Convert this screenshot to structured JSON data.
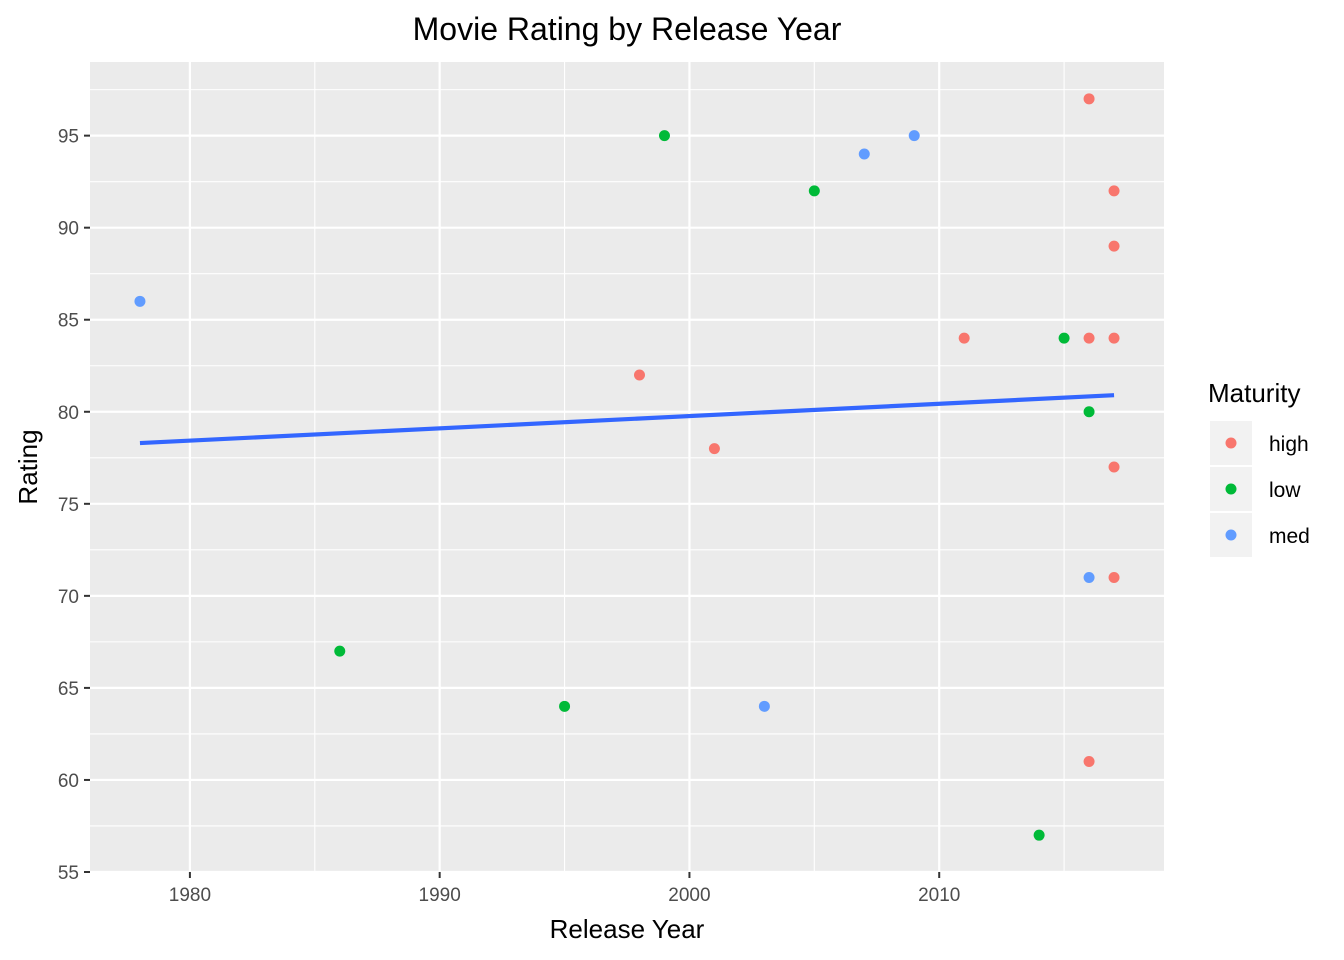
{
  "chart_data": {
    "type": "scatter",
    "title": "Movie Rating by Release Year",
    "xlabel": "Release Year",
    "ylabel": "Rating",
    "xlim": [
      1976,
      2019
    ],
    "ylim": [
      55,
      99
    ],
    "x_ticks": [
      1980,
      1990,
      2000,
      2010
    ],
    "y_ticks": [
      55,
      60,
      65,
      70,
      75,
      80,
      85,
      90,
      95
    ],
    "grid": true,
    "legend": {
      "title": "Maturity",
      "position": "right",
      "entries": [
        {
          "label": "high",
          "color": "#F8766D"
        },
        {
          "label": "low",
          "color": "#00BA38"
        },
        {
          "label": "med",
          "color": "#619CFF"
        }
      ]
    },
    "series": [
      {
        "name": "high",
        "color": "#F8766D",
        "points": [
          {
            "x": 1998,
            "y": 82
          },
          {
            "x": 2001,
            "y": 78
          },
          {
            "x": 2011,
            "y": 84
          },
          {
            "x": 2016,
            "y": 97
          },
          {
            "x": 2016,
            "y": 84
          },
          {
            "x": 2016,
            "y": 61
          },
          {
            "x": 2017,
            "y": 92
          },
          {
            "x": 2017,
            "y": 89
          },
          {
            "x": 2017,
            "y": 84
          },
          {
            "x": 2017,
            "y": 77
          },
          {
            "x": 2017,
            "y": 71
          }
        ]
      },
      {
        "name": "low",
        "color": "#00BA38",
        "points": [
          {
            "x": 1986,
            "y": 67
          },
          {
            "x": 1995,
            "y": 64
          },
          {
            "x": 1999,
            "y": 95
          },
          {
            "x": 2005,
            "y": 92
          },
          {
            "x": 2014,
            "y": 57
          },
          {
            "x": 2015,
            "y": 84
          },
          {
            "x": 2016,
            "y": 80
          }
        ]
      },
      {
        "name": "med",
        "color": "#619CFF",
        "points": [
          {
            "x": 1978,
            "y": 86
          },
          {
            "x": 2003,
            "y": 64
          },
          {
            "x": 2007,
            "y": 94
          },
          {
            "x": 2009,
            "y": 95
          },
          {
            "x": 2016,
            "y": 71
          }
        ]
      }
    ],
    "trend_line": {
      "color": "#3366FF",
      "x": [
        1978,
        2017
      ],
      "y": [
        78.3,
        80.9
      ]
    }
  }
}
